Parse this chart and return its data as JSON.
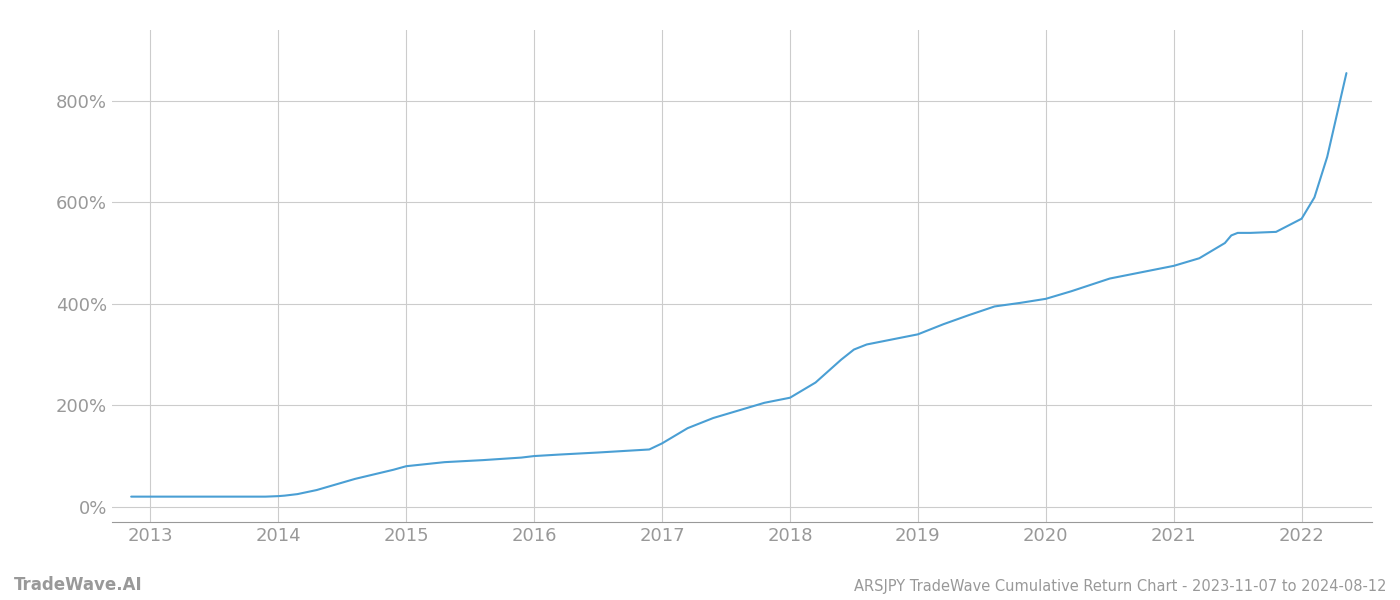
{
  "title": "ARSJPY TradeWave Cumulative Return Chart - 2023-11-07 to 2024-08-12",
  "watermark": "TradeWave.AI",
  "line_color": "#4a9fd4",
  "background_color": "#ffffff",
  "grid_color": "#cccccc",
  "axis_label_color": "#999999",
  "x_ticks": [
    2013,
    2014,
    2015,
    2016,
    2017,
    2018,
    2019,
    2020,
    2021,
    2022
  ],
  "y_ticks": [
    0,
    200,
    400,
    600,
    800
  ],
  "xlim": [
    2012.7,
    2022.55
  ],
  "ylim": [
    -30,
    940
  ],
  "x_data": [
    2012.85,
    2013.0,
    2013.3,
    2013.6,
    2013.9,
    2014.0,
    2014.05,
    2014.15,
    2014.3,
    2014.6,
    2014.9,
    2015.0,
    2015.3,
    2015.6,
    2015.9,
    2016.0,
    2016.2,
    2016.5,
    2016.7,
    2016.9,
    2017.0,
    2017.2,
    2017.4,
    2017.6,
    2017.8,
    2018.0,
    2018.2,
    2018.4,
    2018.5,
    2018.6,
    2018.8,
    2019.0,
    2019.2,
    2019.4,
    2019.6,
    2019.8,
    2020.0,
    2020.2,
    2020.5,
    2020.8,
    2021.0,
    2021.2,
    2021.4,
    2021.45,
    2021.5,
    2021.6,
    2021.8,
    2022.0,
    2022.1,
    2022.2,
    2022.35
  ],
  "y_data": [
    20,
    20,
    20,
    20,
    20,
    21,
    22,
    25,
    33,
    55,
    73,
    80,
    88,
    92,
    97,
    100,
    103,
    107,
    110,
    113,
    125,
    155,
    175,
    190,
    205,
    215,
    245,
    290,
    310,
    320,
    330,
    340,
    360,
    378,
    395,
    402,
    410,
    425,
    450,
    465,
    475,
    490,
    520,
    535,
    540,
    540,
    542,
    568,
    610,
    690,
    855
  ]
}
